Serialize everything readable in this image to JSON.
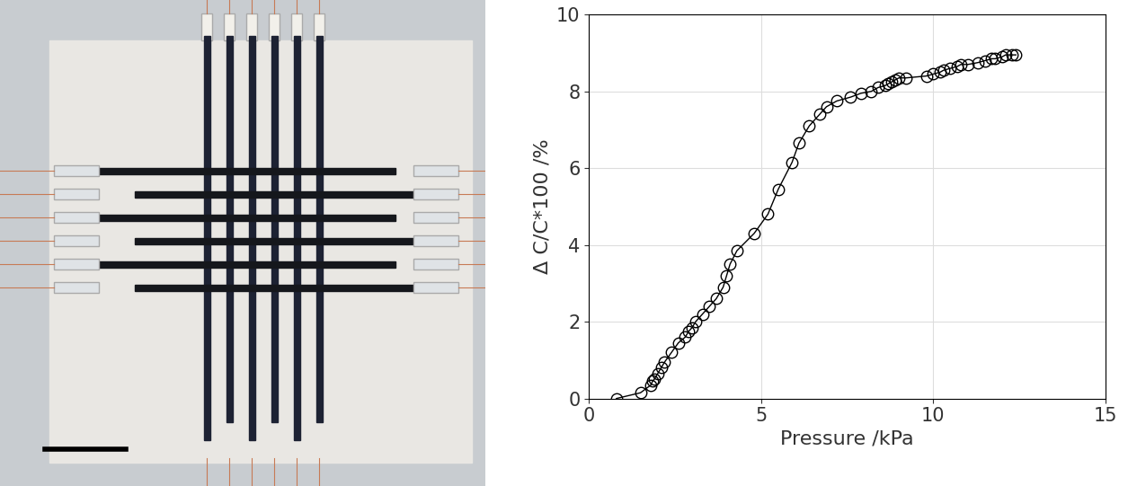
{
  "chart_data": {
    "type": "line",
    "x_label": "Pressure /kPa",
    "y_label": "Δ C/C*100 /%",
    "x": [
      0.8,
      1.5,
      1.8,
      1.85,
      1.9,
      2.0,
      2.1,
      2.2,
      2.4,
      2.6,
      2.8,
      2.9,
      3.0,
      3.1,
      3.3,
      3.5,
      3.7,
      3.9,
      4.0,
      4.1,
      4.3,
      4.8,
      5.2,
      5.5,
      5.9,
      6.1,
      6.4,
      6.7,
      6.9,
      7.2,
      7.6,
      7.9,
      8.2,
      8.4,
      8.6,
      8.7,
      8.8,
      8.9,
      9.0,
      9.2,
      9.8,
      10.0,
      10.2,
      10.3,
      10.5,
      10.7,
      10.8,
      11.0,
      11.3,
      11.5,
      11.7,
      11.8,
      12.0,
      12.1,
      12.3,
      12.4
    ],
    "values": [
      0,
      0.15,
      0.35,
      0.45,
      0.5,
      0.65,
      0.8,
      0.95,
      1.2,
      1.45,
      1.6,
      1.75,
      1.85,
      2.0,
      2.2,
      2.4,
      2.6,
      2.9,
      3.2,
      3.5,
      3.85,
      4.3,
      4.8,
      5.45,
      6.15,
      6.65,
      7.1,
      7.4,
      7.6,
      7.75,
      7.85,
      7.95,
      8.0,
      8.1,
      8.15,
      8.2,
      8.25,
      8.3,
      8.35,
      8.35,
      8.4,
      8.45,
      8.5,
      8.55,
      8.6,
      8.65,
      8.7,
      8.7,
      8.75,
      8.8,
      8.85,
      8.85,
      8.9,
      8.95,
      8.95,
      8.95
    ],
    "color": "#000000",
    "marker": "o",
    "line_style": "solid",
    "xlim": [
      0,
      15
    ],
    "xticks": [
      0,
      5,
      10,
      15
    ],
    "ylim": [
      0,
      10
    ],
    "yticks": [
      0,
      2,
      4,
      6,
      8,
      10
    ],
    "grid": true
  }
}
